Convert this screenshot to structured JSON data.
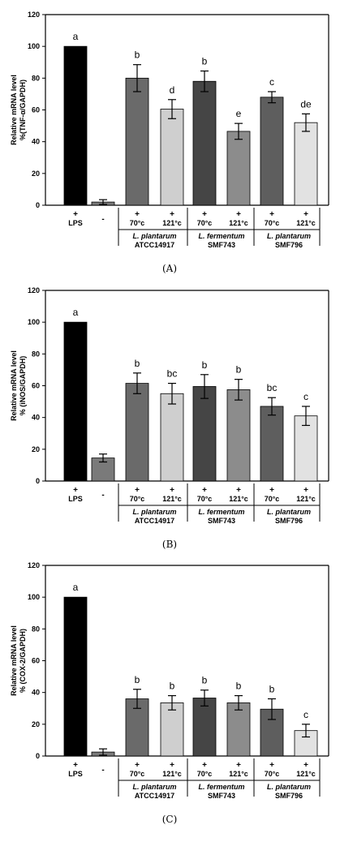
{
  "common": {
    "treatment_plus": "+",
    "treatment_minus": "-",
    "lps_label": "LPS",
    "temps": [
      "70°c",
      "121°c"
    ],
    "strains": [
      {
        "species": "L. plantarum",
        "strain": "ATCC14917"
      },
      {
        "species": "L. fermentum",
        "strain": "SMF743"
      },
      {
        "species": "L. plantarum",
        "strain": "SMF796"
      }
    ]
  },
  "colors": {
    "lps": "#000000",
    "control": "#7a7a7a",
    "atcc_70": "#6a6a6a",
    "atcc_121": "#cfcfcf",
    "smf743_70": "#454545",
    "smf743_121": "#8c8c8c",
    "smf796_70": "#5e5e5e",
    "smf796_121": "#e2e2e2"
  },
  "chart_data": [
    {
      "type": "bar",
      "caption": "(A)",
      "ylabel": "Relative mRNA level\n%(TNF-α/GAPDH)",
      "ylim": [
        0,
        120
      ],
      "yticks": [
        0,
        20,
        40,
        60,
        80,
        100,
        120
      ],
      "categories": [
        "LPS",
        "-",
        "ATCC14917 70°c",
        "ATCC14917 121°c",
        "SMF743 70°c",
        "SMF743 121°c",
        "SMF796 70°c",
        "SMF796 121°c"
      ],
      "values": [
        100,
        2,
        80,
        60.5,
        78,
        46.5,
        68,
        52
      ],
      "errors": [
        0,
        1.5,
        8.5,
        6,
        6.5,
        5,
        3.5,
        5.5
      ],
      "letters": [
        "a",
        "",
        "b",
        "d",
        "b",
        "e",
        "c",
        "de"
      ]
    },
    {
      "type": "bar",
      "caption": "(B)",
      "ylabel": "Relative mRNA  level\n% (iNOS/GAPDH)",
      "ylim": [
        0,
        120
      ],
      "yticks": [
        0,
        20,
        40,
        60,
        80,
        100,
        120
      ],
      "categories": [
        "LPS",
        "-",
        "ATCC14917 70°c",
        "ATCC14917 121°c",
        "SMF743 70°c",
        "SMF743 121°c",
        "SMF796 70°c",
        "SMF796 121°c"
      ],
      "values": [
        100,
        14.5,
        61.5,
        55,
        59.5,
        57.5,
        47,
        41
      ],
      "errors": [
        0,
        2.5,
        6.5,
        6.5,
        7.5,
        6.5,
        5.5,
        6
      ],
      "letters": [
        "a",
        "",
        "b",
        "bc",
        "b",
        "b",
        "bc",
        "c"
      ]
    },
    {
      "type": "bar",
      "caption": "(C)",
      "ylabel": "Relative mRNA level\n% (COX-2/GAPDH)",
      "ylim": [
        0,
        120
      ],
      "yticks": [
        0,
        20,
        40,
        60,
        80,
        100,
        120
      ],
      "categories": [
        "LPS",
        "-",
        "ATCC14917 70°c",
        "ATCC14917 121°c",
        "SMF743 70°c",
        "SMF743 121°c",
        "SMF796 70°c",
        "SMF796 121°c"
      ],
      "values": [
        100,
        2.5,
        36,
        33.5,
        36.5,
        33.5,
        29.5,
        16
      ],
      "errors": [
        0,
        2,
        6,
        4.5,
        5,
        4.5,
        6.5,
        4
      ],
      "letters": [
        "a",
        "",
        "b",
        "b",
        "b",
        "b",
        "b",
        "c"
      ]
    }
  ]
}
